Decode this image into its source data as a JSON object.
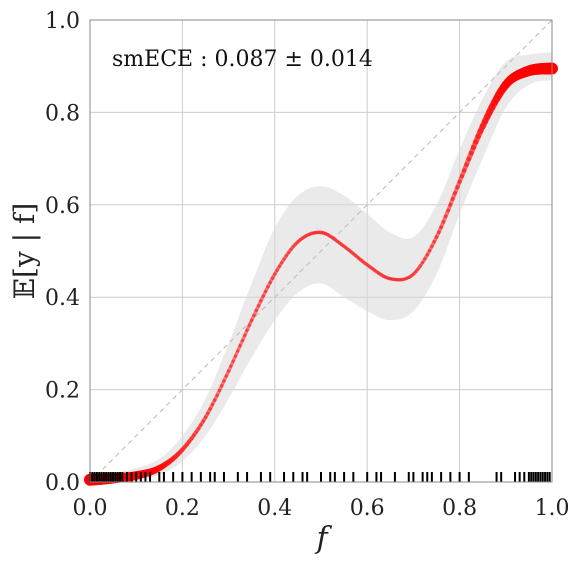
{
  "chart_data": {
    "type": "line",
    "title": "",
    "xlabel": "f",
    "ylabel": "𝔼[y | f]",
    "xlim": [
      0,
      1
    ],
    "ylim": [
      0,
      1
    ],
    "grid": true,
    "xticks": [
      "0.0",
      "0.2",
      "0.4",
      "0.6",
      "0.8",
      "1.0"
    ],
    "yticks": [
      "0.0",
      "0.2",
      "0.4",
      "0.6",
      "0.8",
      "1.0"
    ],
    "annotation": "smECE : 0.087 ± 0.014",
    "diagonal": {
      "from": [
        0,
        0
      ],
      "to": [
        1,
        1
      ],
      "style": "dashed"
    },
    "series": [
      {
        "kind": "smoothed-calibration",
        "x": [
          0.0,
          0.05,
          0.1,
          0.15,
          0.2,
          0.25,
          0.3,
          0.35,
          0.4,
          0.45,
          0.5,
          0.55,
          0.6,
          0.65,
          0.7,
          0.75,
          0.8,
          0.85,
          0.9,
          0.95,
          1.0
        ],
        "y": [
          0.005,
          0.008,
          0.014,
          0.03,
          0.07,
          0.14,
          0.24,
          0.35,
          0.45,
          0.52,
          0.54,
          0.51,
          0.47,
          0.44,
          0.45,
          0.53,
          0.65,
          0.77,
          0.86,
          0.89,
          0.895
        ],
        "y_lower": [
          0.0,
          0.0,
          0.004,
          0.015,
          0.045,
          0.1,
          0.18,
          0.27,
          0.35,
          0.41,
          0.43,
          0.4,
          0.37,
          0.35,
          0.37,
          0.45,
          0.58,
          0.7,
          0.81,
          0.86,
          0.87
        ],
        "y_upper": [
          0.015,
          0.018,
          0.03,
          0.05,
          0.1,
          0.18,
          0.3,
          0.43,
          0.55,
          0.62,
          0.64,
          0.62,
          0.58,
          0.54,
          0.53,
          0.6,
          0.72,
          0.83,
          0.91,
          0.925,
          0.93
        ],
        "density": [
          1.0,
          0.8,
          0.6,
          0.35,
          0.15,
          0.08,
          0.05,
          0.05,
          0.05,
          0.05,
          0.05,
          0.05,
          0.05,
          0.05,
          0.05,
          0.08,
          0.15,
          0.35,
          0.6,
          0.85,
          1.0
        ]
      }
    ],
    "rug": [
      0.0,
      0.005,
      0.01,
      0.015,
      0.02,
      0.025,
      0.03,
      0.035,
      0.04,
      0.045,
      0.05,
      0.055,
      0.06,
      0.065,
      0.07,
      0.08,
      0.09,
      0.1,
      0.11,
      0.12,
      0.13,
      0.15,
      0.16,
      0.18,
      0.2,
      0.22,
      0.24,
      0.26,
      0.27,
      0.29,
      0.32,
      0.34,
      0.37,
      0.39,
      0.42,
      0.44,
      0.46,
      0.47,
      0.5,
      0.52,
      0.53,
      0.55,
      0.57,
      0.6,
      0.62,
      0.63,
      0.66,
      0.69,
      0.7,
      0.72,
      0.73,
      0.74,
      0.76,
      0.78,
      0.8,
      0.82,
      0.88,
      0.89,
      0.92,
      0.93,
      0.94,
      0.95,
      0.955,
      0.96,
      0.965,
      0.97,
      0.975,
      0.98,
      0.985,
      0.99,
      0.995
    ],
    "colors": {
      "curve": "#ff0000",
      "band": "#d9d9d9",
      "grid": "#cccccc",
      "diagonal": "#bbbbbb",
      "rug": "#000000"
    }
  }
}
